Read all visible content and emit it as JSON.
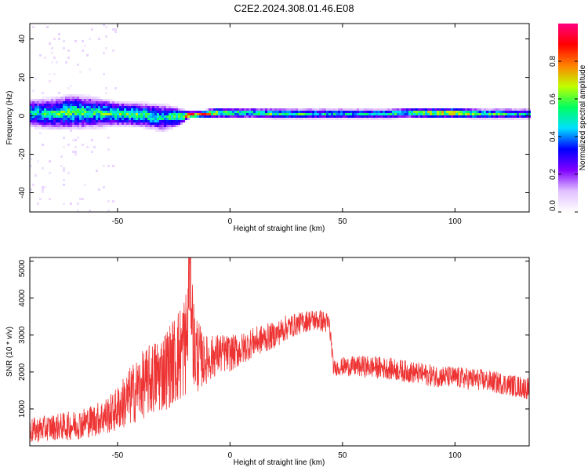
{
  "title": "C2E2.2024.308.01.46.E08",
  "chart_data": [
    {
      "type": "heatmap",
      "xlabel": "Height of straight line (km)",
      "ylabel": "Frequency (Hz)",
      "xlim": [
        -89,
        133
      ],
      "ylim": [
        -50,
        48
      ],
      "xticks": [
        -50,
        0,
        50,
        100
      ],
      "yticks": [
        -40,
        -20,
        0,
        20,
        40
      ],
      "colorbar": {
        "label": "Normalized spectral amplitude",
        "ticks": [
          0.0,
          0.2,
          0.4,
          0.6,
          0.8
        ],
        "tick_labels": [
          "0.0",
          "0.2",
          "0.4",
          "0.6",
          "0.8"
        ],
        "range": [
          0,
          1
        ],
        "colormap": "gist_rainbow",
        "colors": [
          "#ffffff",
          "#e0c0ff",
          "#8000ff",
          "#0000ff",
          "#00e0ff",
          "#00ff60",
          "#c0ff00",
          "#ff8000",
          "#ff0000",
          "#ff0080"
        ]
      },
      "series": [
        {
          "x": [
            -89,
            -80,
            -70,
            -60,
            -50,
            -40,
            -30,
            -22,
            -18,
            -15,
            -6,
            0,
            10,
            20,
            30,
            40,
            50,
            60,
            70,
            80,
            90,
            100,
            110,
            120,
            133
          ],
          "y": [
            1.5,
            1.0,
            2.0,
            1.5,
            1.0,
            0.5,
            -1.0,
            -0.5,
            0.5,
            0.5,
            1.5,
            1.5,
            1.5,
            1.0,
            1.0,
            1.0,
            1.0,
            1.0,
            1.0,
            1.5,
            1.5,
            1.5,
            1.0,
            1.0,
            1.0
          ],
          "spread": [
            8,
            9,
            10,
            9,
            7,
            7,
            8,
            5,
            2,
            2,
            3,
            3,
            3,
            3,
            3,
            3,
            3,
            3,
            3,
            3,
            3,
            3,
            3,
            3,
            3
          ],
          "peak": [
            0.5,
            0.55,
            0.6,
            0.55,
            0.6,
            0.6,
            0.5,
            0.65,
            0.9,
            0.9,
            0.7,
            0.6,
            0.55,
            0.6,
            0.55,
            0.5,
            0.5,
            0.5,
            0.55,
            0.6,
            0.75,
            0.8,
            0.6,
            0.55,
            0.5
          ]
        }
      ]
    },
    {
      "type": "line",
      "xlabel": "Height of straight line (km)",
      "ylabel": "SNR (10 * v/v)",
      "xlim": [
        -89,
        133
      ],
      "ylim": [
        0,
        5100
      ],
      "xticks": [
        -50,
        0,
        50,
        100
      ],
      "yticks": [
        1000,
        2000,
        3000,
        4000,
        5000
      ],
      "color": "#ee3333",
      "series": [
        {
          "x": [
            -89,
            -80,
            -70,
            -60,
            -52,
            -45,
            -40,
            -35,
            -30,
            -25,
            -22,
            -19,
            -18,
            -16,
            -12,
            -8,
            -5,
            0,
            5,
            10,
            15,
            20,
            25,
            30,
            35,
            40,
            44,
            45,
            46,
            50,
            60,
            70,
            80,
            90,
            100,
            110,
            120,
            133
          ],
          "y": [
            400,
            500,
            550,
            700,
            900,
            1300,
            1600,
            1800,
            2000,
            2300,
            2500,
            2900,
            5000,
            2600,
            2300,
            2400,
            2500,
            2500,
            2600,
            2800,
            2900,
            3000,
            3200,
            3300,
            3400,
            3400,
            3300,
            2800,
            2100,
            2150,
            2150,
            2100,
            2000,
            1900,
            1850,
            1800,
            1700,
            1550
          ],
          "noise": [
            350,
            350,
            400,
            450,
            550,
            800,
            900,
            1000,
            1100,
            1200,
            1400,
            1500,
            1200,
            1300,
            700,
            600,
            550,
            500,
            450,
            400,
            400,
            350,
            350,
            300,
            300,
            300,
            300,
            250,
            200,
            250,
            300,
            300,
            300,
            300,
            300,
            300,
            300,
            300
          ]
        }
      ]
    }
  ]
}
